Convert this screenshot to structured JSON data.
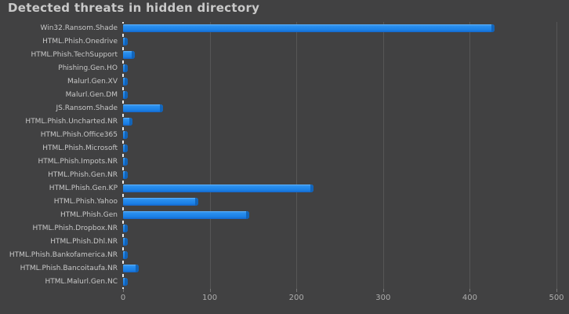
{
  "title": "Detected threats in hidden directory",
  "chart_data": {
    "type": "bar",
    "orientation": "horizontal",
    "title": "Detected threats in hidden directory",
    "categories": [
      "Win32.Ransom.Shade",
      "HTML.Phish.Onedrive",
      "HTML.Phish.TechSupport",
      "Phishing.Gen.HO",
      "Malurl.Gen.XV",
      "Malurl.Gen.DM",
      "JS.Ransom.Shade",
      "HTML.Phish.Uncharted.NR",
      "HTML.Phish.Office365",
      "HTML.Phish.Microsoft",
      "HTML.Phish.Impots.NR",
      "HTML.Phish.Gen.NR",
      "HTML.Phish.Gen.KP",
      "HTML.Phish.Yahoo",
      "HTML.Phish.Gen",
      "HTML.Phish.Dropbox.NR",
      "HTML.Phish.Dhl.NR",
      "HTML.Phish.Bankofamerica.NR",
      "HTML.Phish.Bancoitaufa.NR",
      "HTML.Malurl.Gen.NC"
    ],
    "values": [
      429,
      5,
      14,
      4,
      3,
      3,
      46,
      11,
      3,
      4,
      3,
      3,
      220,
      87,
      146,
      3,
      3,
      4,
      18,
      3
    ],
    "xlabel": "",
    "ylabel": "",
    "xlim": [
      0,
      500
    ],
    "x_ticks": [
      0,
      100,
      200,
      300,
      400,
      500
    ],
    "grid": true,
    "legend": false,
    "colors": {
      "background": "#414142",
      "bar": "#1b80e6",
      "bar_cap": "#1161b4",
      "bar_highlight": "#63b2f6",
      "gridline": "#565656",
      "axis_dash": "#e9e9e9",
      "title_text": "#c9c9c9",
      "category_text": "#c8c8c8",
      "tick_text": "#adadad"
    }
  }
}
